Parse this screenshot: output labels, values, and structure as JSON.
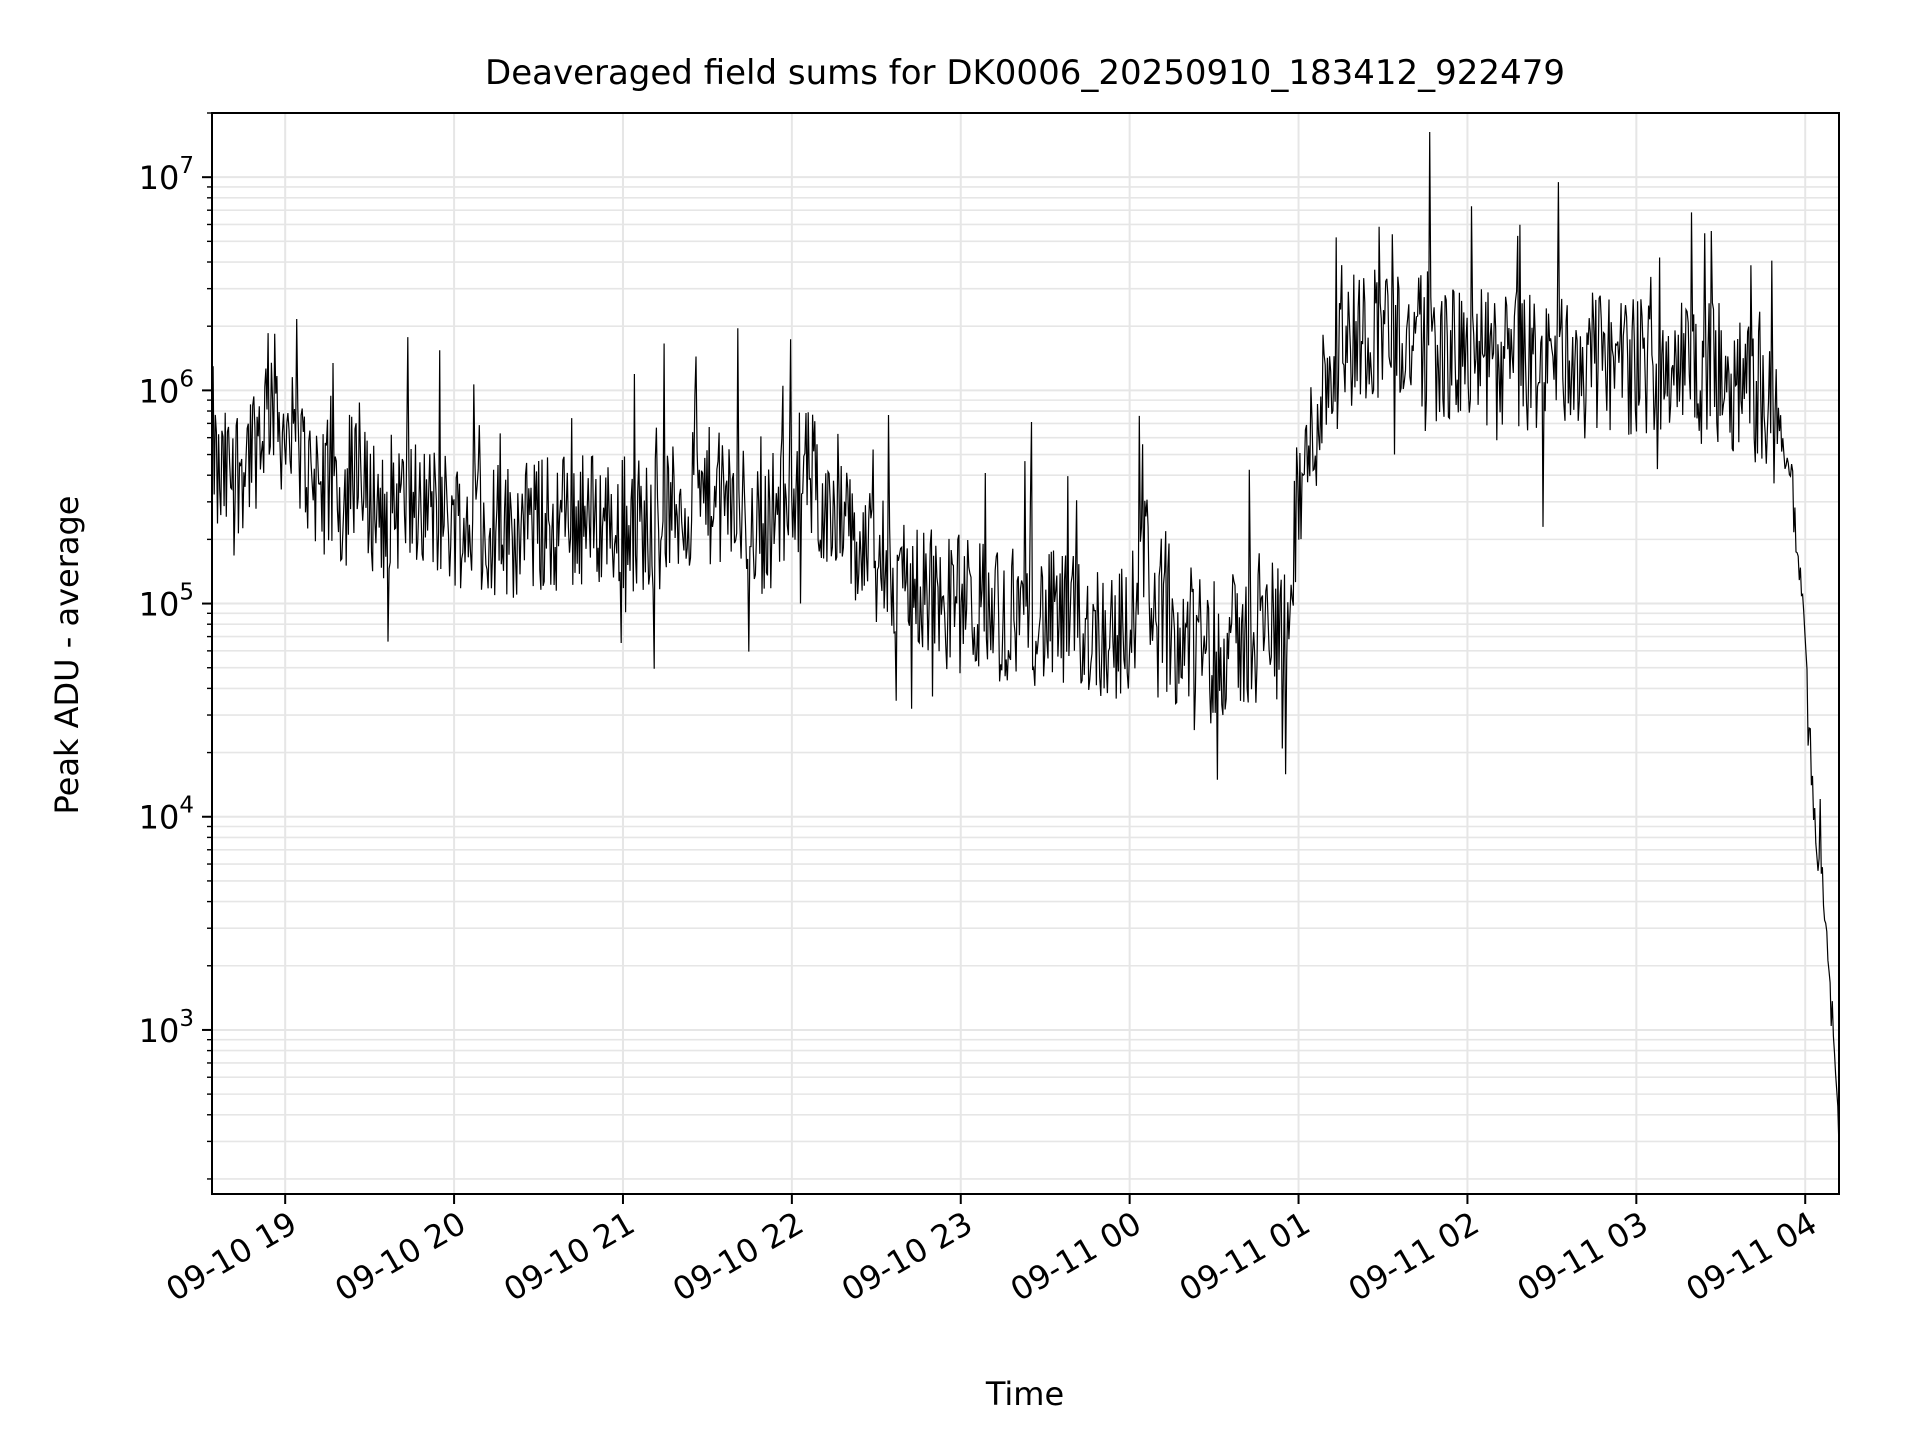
{
  "chart_data": {
    "type": "line",
    "title": "Deaveraged field sums for DK0006_20250910_183412_922479",
    "xlabel": "Time",
    "ylabel": "Peak ADU - average",
    "y_scale": "log",
    "ylim": [
      170,
      20000000
    ],
    "xlim": [
      "2025-09-10 18:34",
      "2025-09-11 04:12"
    ],
    "grid": true,
    "legend": "none",
    "line_color": "#000000",
    "x_ticks": [
      {
        "t": "2025-09-10 19:00",
        "label": "09-10 19"
      },
      {
        "t": "2025-09-10 20:00",
        "label": "09-10 20"
      },
      {
        "t": "2025-09-10 21:00",
        "label": "09-10 21"
      },
      {
        "t": "2025-09-10 22:00",
        "label": "09-10 22"
      },
      {
        "t": "2025-09-10 23:00",
        "label": "09-10 23"
      },
      {
        "t": "2025-09-11 00:00",
        "label": "09-11 00"
      },
      {
        "t": "2025-09-11 01:00",
        "label": "09-11 01"
      },
      {
        "t": "2025-09-11 02:00",
        "label": "09-11 02"
      },
      {
        "t": "2025-09-11 03:00",
        "label": "09-11 03"
      },
      {
        "t": "2025-09-11 04:00",
        "label": "09-11 04"
      }
    ],
    "y_ticks": [
      {
        "value": 1000,
        "base": "10",
        "exp": "3"
      },
      {
        "value": 10000,
        "base": "10",
        "exp": "4"
      },
      {
        "value": 100000,
        "base": "10",
        "exp": "5"
      },
      {
        "value": 1000000,
        "base": "10",
        "exp": "6"
      },
      {
        "value": 10000000,
        "base": "10",
        "exp": "7"
      }
    ],
    "series": [
      {
        "x": [
          "2025-09-10 18:34",
          "2025-09-10 18:36",
          "2025-09-10 18:40",
          "2025-09-10 18:44",
          "2025-09-10 18:48",
          "2025-09-10 18:50",
          "2025-09-10 18:52",
          "2025-09-10 18:55",
          "2025-09-10 18:58",
          "2025-09-10 19:00",
          "2025-09-10 19:05",
          "2025-09-10 19:10",
          "2025-09-10 19:15",
          "2025-09-10 19:20",
          "2025-09-10 19:25",
          "2025-09-10 19:30",
          "2025-09-10 19:40",
          "2025-09-10 19:50",
          "2025-09-10 20:00",
          "2025-09-10 20:10",
          "2025-09-10 20:20",
          "2025-09-10 20:30",
          "2025-09-10 20:40",
          "2025-09-10 20:50",
          "2025-09-10 21:00",
          "2025-09-10 21:10",
          "2025-09-10 21:20",
          "2025-09-10 21:30",
          "2025-09-10 21:40",
          "2025-09-10 21:50",
          "2025-09-10 22:00",
          "2025-09-10 22:05",
          "2025-09-10 22:10",
          "2025-09-10 22:20",
          "2025-09-10 22:30",
          "2025-09-10 22:40",
          "2025-09-10 22:50",
          "2025-09-10 23:00",
          "2025-09-10 23:10",
          "2025-09-10 23:20",
          "2025-09-10 23:30",
          "2025-09-10 23:40",
          "2025-09-10 23:50",
          "2025-09-11 00:00",
          "2025-09-11 00:05",
          "2025-09-11 00:10",
          "2025-09-11 00:20",
          "2025-09-11 00:30",
          "2025-09-11 00:40",
          "2025-09-11 00:50",
          "2025-09-11 00:55",
          "2025-09-11 01:00",
          "2025-09-11 01:10",
          "2025-09-11 01:20",
          "2025-09-11 01:30",
          "2025-09-11 01:40",
          "2025-09-11 01:50",
          "2025-09-11 02:00",
          "2025-09-11 02:10",
          "2025-09-11 02:20",
          "2025-09-11 02:30",
          "2025-09-11 02:40",
          "2025-09-11 02:50",
          "2025-09-11 03:00",
          "2025-09-11 03:10",
          "2025-09-11 03:20",
          "2025-09-11 03:30",
          "2025-09-11 03:40",
          "2025-09-11 03:45",
          "2025-09-11 03:50",
          "2025-09-11 03:55",
          "2025-09-11 04:00",
          "2025-09-11 04:03",
          "2025-09-11 04:06",
          "2025-09-11 04:09",
          "2025-09-11 04:12"
        ],
        "y": [
          700000,
          350000,
          400000,
          450000,
          550000,
          600000,
          700000,
          1000000,
          750000,
          600000,
          500000,
          400000,
          350000,
          300000,
          350000,
          300000,
          300000,
          280000,
          250000,
          230000,
          220000,
          230000,
          250000,
          250000,
          250000,
          230000,
          280000,
          320000,
          280000,
          220000,
          350000,
          400000,
          350000,
          200000,
          150000,
          130000,
          110000,
          100000,
          95000,
          90000,
          85000,
          80000,
          75000,
          70000,
          200000,
          75000,
          70000,
          65000,
          65000,
          80000,
          90000,
          300000,
          1200000,
          1800000,
          2000000,
          1700000,
          1500000,
          1400000,
          1400000,
          1300000,
          1350000,
          1400000,
          1350000,
          1300000,
          1350000,
          1300000,
          1200000,
          1000000,
          900000,
          700000,
          400000,
          60000,
          10000,
          5000,
          1500,
          300
        ]
      }
    ]
  }
}
